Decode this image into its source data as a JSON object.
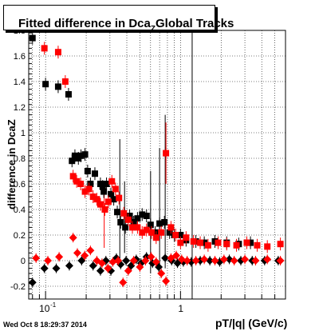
{
  "title": {
    "main": "Fitted difference in Dca",
    "sub": "Z",
    "rest": "Global Tracks"
  },
  "timestamp": "Wed Oct  8 18:29:37 2014",
  "chart_data": {
    "type": "scatter",
    "title": "Fitted difference in DcaZ Global Tracks",
    "xlabel": "pT/|q| (GeV/c)",
    "ylabel": "difference in DcaZ",
    "xscale": "log",
    "xlim": [
      0.075,
      6.0
    ],
    "ylim": [
      -0.3,
      1.8
    ],
    "grid": true,
    "x_tick_labels": [
      "10^-1",
      "1"
    ],
    "y_ticks": [
      -0.2,
      0,
      0.2,
      0.4,
      0.6,
      0.8,
      1,
      1.2,
      1.4,
      1.6,
      1.8
    ],
    "y_tick_labels": [
      "-0.2",
      "0",
      "0.2",
      "0.4",
      "0.6",
      "0.8",
      "1",
      "1.2",
      "1.4",
      "1.6",
      "1.8"
    ],
    "vline_x": 1.22,
    "colors": {
      "black": "#000000",
      "red": "#ff0000"
    },
    "series": [
      {
        "color": "black",
        "marker": "square",
        "x": [
          0.08,
          0.1,
          0.124,
          0.148,
          0.157,
          0.165,
          0.175,
          0.183,
          0.196,
          0.205,
          0.215,
          0.232,
          0.255,
          0.265,
          0.27,
          0.283,
          0.305,
          0.32,
          0.34,
          0.36,
          0.39,
          0.42,
          0.45,
          0.48,
          0.52,
          0.56,
          0.6,
          0.65,
          0.7,
          0.76,
          0.83,
          0.9,
          1.0,
          1.1,
          1.3,
          1.5,
          1.8,
          2.2,
          2.7,
          3.3
        ],
        "y": [
          1.74,
          1.38,
          1.36,
          1.3,
          0.78,
          0.82,
          0.8,
          0.82,
          0.83,
          0.7,
          0.6,
          0.68,
          0.6,
          0.58,
          0.54,
          0.6,
          0.52,
          0.48,
          0.38,
          0.3,
          0.26,
          0.35,
          0.3,
          0.33,
          0.36,
          0.35,
          0.28,
          0.22,
          0.29,
          0.3,
          0.22,
          0.2,
          0.2,
          0.16,
          0.15,
          0.14,
          0.15,
          0.14,
          0.13,
          0.14
        ]
      },
      {
        "color": "red",
        "marker": "square",
        "x": [
          0.098,
          0.124,
          0.14,
          0.16,
          0.17,
          0.182,
          0.196,
          0.21,
          0.225,
          0.24,
          0.255,
          0.275,
          0.292,
          0.31,
          0.33,
          0.35,
          0.38,
          0.41,
          0.44,
          0.48,
          0.52,
          0.56,
          0.61,
          0.66,
          0.72,
          0.78,
          0.85,
          0.92,
          1.0,
          1.1,
          1.25,
          1.4,
          1.6,
          1.9,
          2.2,
          2.6,
          3.1,
          3.7,
          4.4,
          5.5
        ],
        "y": [
          1.66,
          1.63,
          1.4,
          0.66,
          0.62,
          0.6,
          0.54,
          0.56,
          0.5,
          0.48,
          0.44,
          0.4,
          0.46,
          0.62,
          0.56,
          0.49,
          0.37,
          0.32,
          0.26,
          0.26,
          0.22,
          0.24,
          0.22,
          0.18,
          0.22,
          0.84,
          0.26,
          0.2,
          0.14,
          0.18,
          0.15,
          0.14,
          0.12,
          0.14,
          0.13,
          0.12,
          0.14,
          0.12,
          0.11,
          0.13
        ]
      },
      {
        "color": "black",
        "marker": "diamond",
        "x": [
          0.08,
          0.098,
          0.12,
          0.15,
          0.185,
          0.225,
          0.255,
          0.28,
          0.305,
          0.335,
          0.36,
          0.395,
          0.43,
          0.47,
          0.51,
          0.56,
          0.62,
          0.69,
          0.77,
          0.86,
          0.95,
          1.05,
          1.2,
          1.4,
          1.65,
          1.95,
          2.3,
          2.8,
          3.4,
          4.2,
          5.3
        ],
        "y": [
          -0.17,
          -0.06,
          -0.06,
          -0.04,
          0.0,
          -0.04,
          -0.08,
          0.0,
          -0.08,
          0.02,
          -0.03,
          0.0,
          -0.04,
          0.01,
          -0.02,
          0.03,
          -0.02,
          -0.05,
          0.02,
          0.0,
          -0.02,
          -0.01,
          -0.01,
          0.0,
          0.0,
          -0.01,
          0.01,
          0.0,
          0.0,
          0.0,
          0.0
        ]
      },
      {
        "color": "red",
        "marker": "diamond",
        "x": [
          0.085,
          0.104,
          0.126,
          0.16,
          0.172,
          0.195,
          0.215,
          0.24,
          0.262,
          0.29,
          0.315,
          0.345,
          0.375,
          0.41,
          0.45,
          0.5,
          0.55,
          0.605,
          0.66,
          0.72,
          0.78,
          0.85,
          0.93,
          1.02,
          1.12,
          1.3,
          1.5,
          1.8,
          2.1,
          2.5,
          3.0,
          3.6,
          4.4,
          5.5
        ],
        "y": [
          0.02,
          0.0,
          0.03,
          0.18,
          0.06,
          0.04,
          0.08,
          0.0,
          -0.02,
          -0.06,
          -0.01,
          0.0,
          -0.17,
          -0.08,
          0.0,
          -0.05,
          0.0,
          0.03,
          -0.01,
          -0.1,
          -0.16,
          0.02,
          0.04,
          0.01,
          0.0,
          0.0,
          0.01,
          0.0,
          0.01,
          0.0,
          0.01,
          0.0,
          0.01,
          0.0
        ]
      }
    ],
    "error_bars": [
      {
        "color": "black",
        "x": 0.355,
        "y_low": 0.0,
        "y_high": 0.95
      },
      {
        "color": "black",
        "x": 0.385,
        "y_low": 0.06,
        "y_high": 0.62
      },
      {
        "color": "black",
        "x": 0.6,
        "y_low": -0.1,
        "y_high": 0.7
      },
      {
        "color": "black",
        "x": 0.7,
        "y_low": -0.04,
        "y_high": 0.88
      },
      {
        "color": "black",
        "x": 0.77,
        "y_low": -0.06,
        "y_high": 1.14
      },
      {
        "color": "red",
        "x": 0.78,
        "y_low": 0.6,
        "y_high": 1.08
      },
      {
        "color": "red",
        "x": 0.272,
        "y_low": 0.1,
        "y_high": 0.56
      }
    ]
  }
}
